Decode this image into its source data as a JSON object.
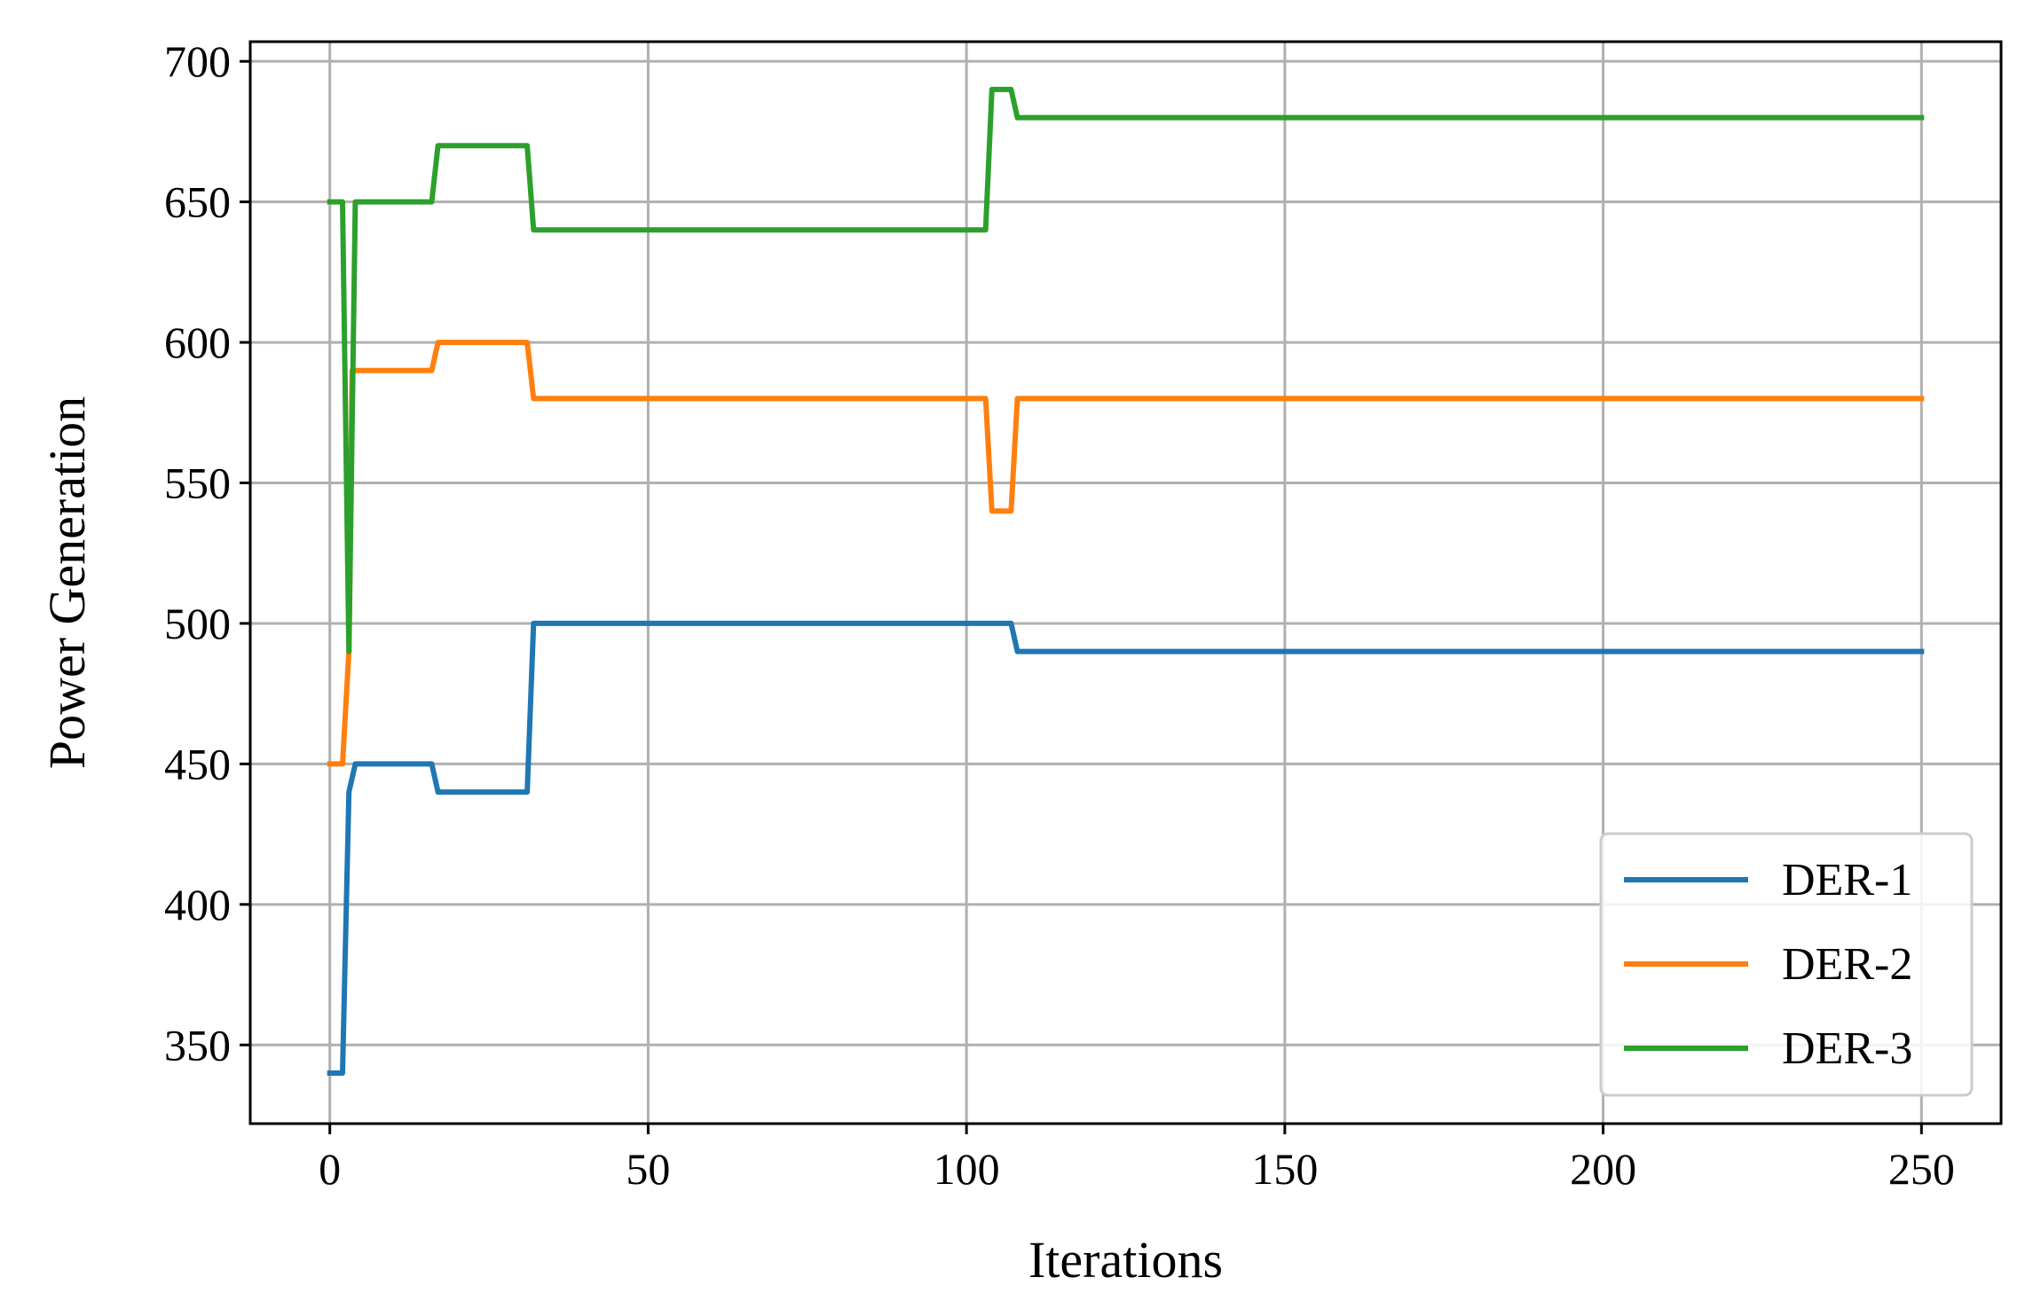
{
  "chart_data": {
    "type": "line",
    "title": "",
    "xlabel": "Iterations",
    "ylabel": "Power Generation",
    "xlim": [
      -12.5,
      262.5
    ],
    "ylim": [
      322,
      707
    ],
    "xticks": [
      0,
      50,
      100,
      150,
      200,
      250
    ],
    "yticks": [
      350,
      400,
      450,
      500,
      550,
      600,
      650,
      700
    ],
    "grid": true,
    "legend_position": "lower-right",
    "series": [
      {
        "name": "DER-1",
        "color": "#1f77b4",
        "points": [
          [
            0,
            340
          ],
          [
            2,
            340
          ],
          [
            3,
            440
          ],
          [
            4,
            450
          ],
          [
            16,
            450
          ],
          [
            17,
            440
          ],
          [
            31,
            440
          ],
          [
            32,
            500
          ],
          [
            107,
            500
          ],
          [
            108,
            490
          ],
          [
            250,
            490
          ]
        ]
      },
      {
        "name": "DER-2",
        "color": "#ff7f0e",
        "points": [
          [
            0,
            450
          ],
          [
            2,
            450
          ],
          [
            3,
            490
          ],
          [
            3.5,
            590
          ],
          [
            4,
            590
          ],
          [
            16,
            590
          ],
          [
            17,
            600
          ],
          [
            31,
            600
          ],
          [
            32,
            580
          ],
          [
            103,
            580
          ],
          [
            104,
            540
          ],
          [
            107,
            540
          ],
          [
            108,
            580
          ],
          [
            250,
            580
          ]
        ]
      },
      {
        "name": "DER-3",
        "color": "#2ca02c",
        "points": [
          [
            0,
            650
          ],
          [
            2,
            650
          ],
          [
            3,
            490
          ],
          [
            4,
            650
          ],
          [
            16,
            650
          ],
          [
            17,
            670
          ],
          [
            31,
            670
          ],
          [
            32,
            640
          ],
          [
            103,
            640
          ],
          [
            104,
            690
          ],
          [
            107,
            690
          ],
          [
            108,
            680
          ],
          [
            250,
            680
          ]
        ]
      }
    ]
  }
}
